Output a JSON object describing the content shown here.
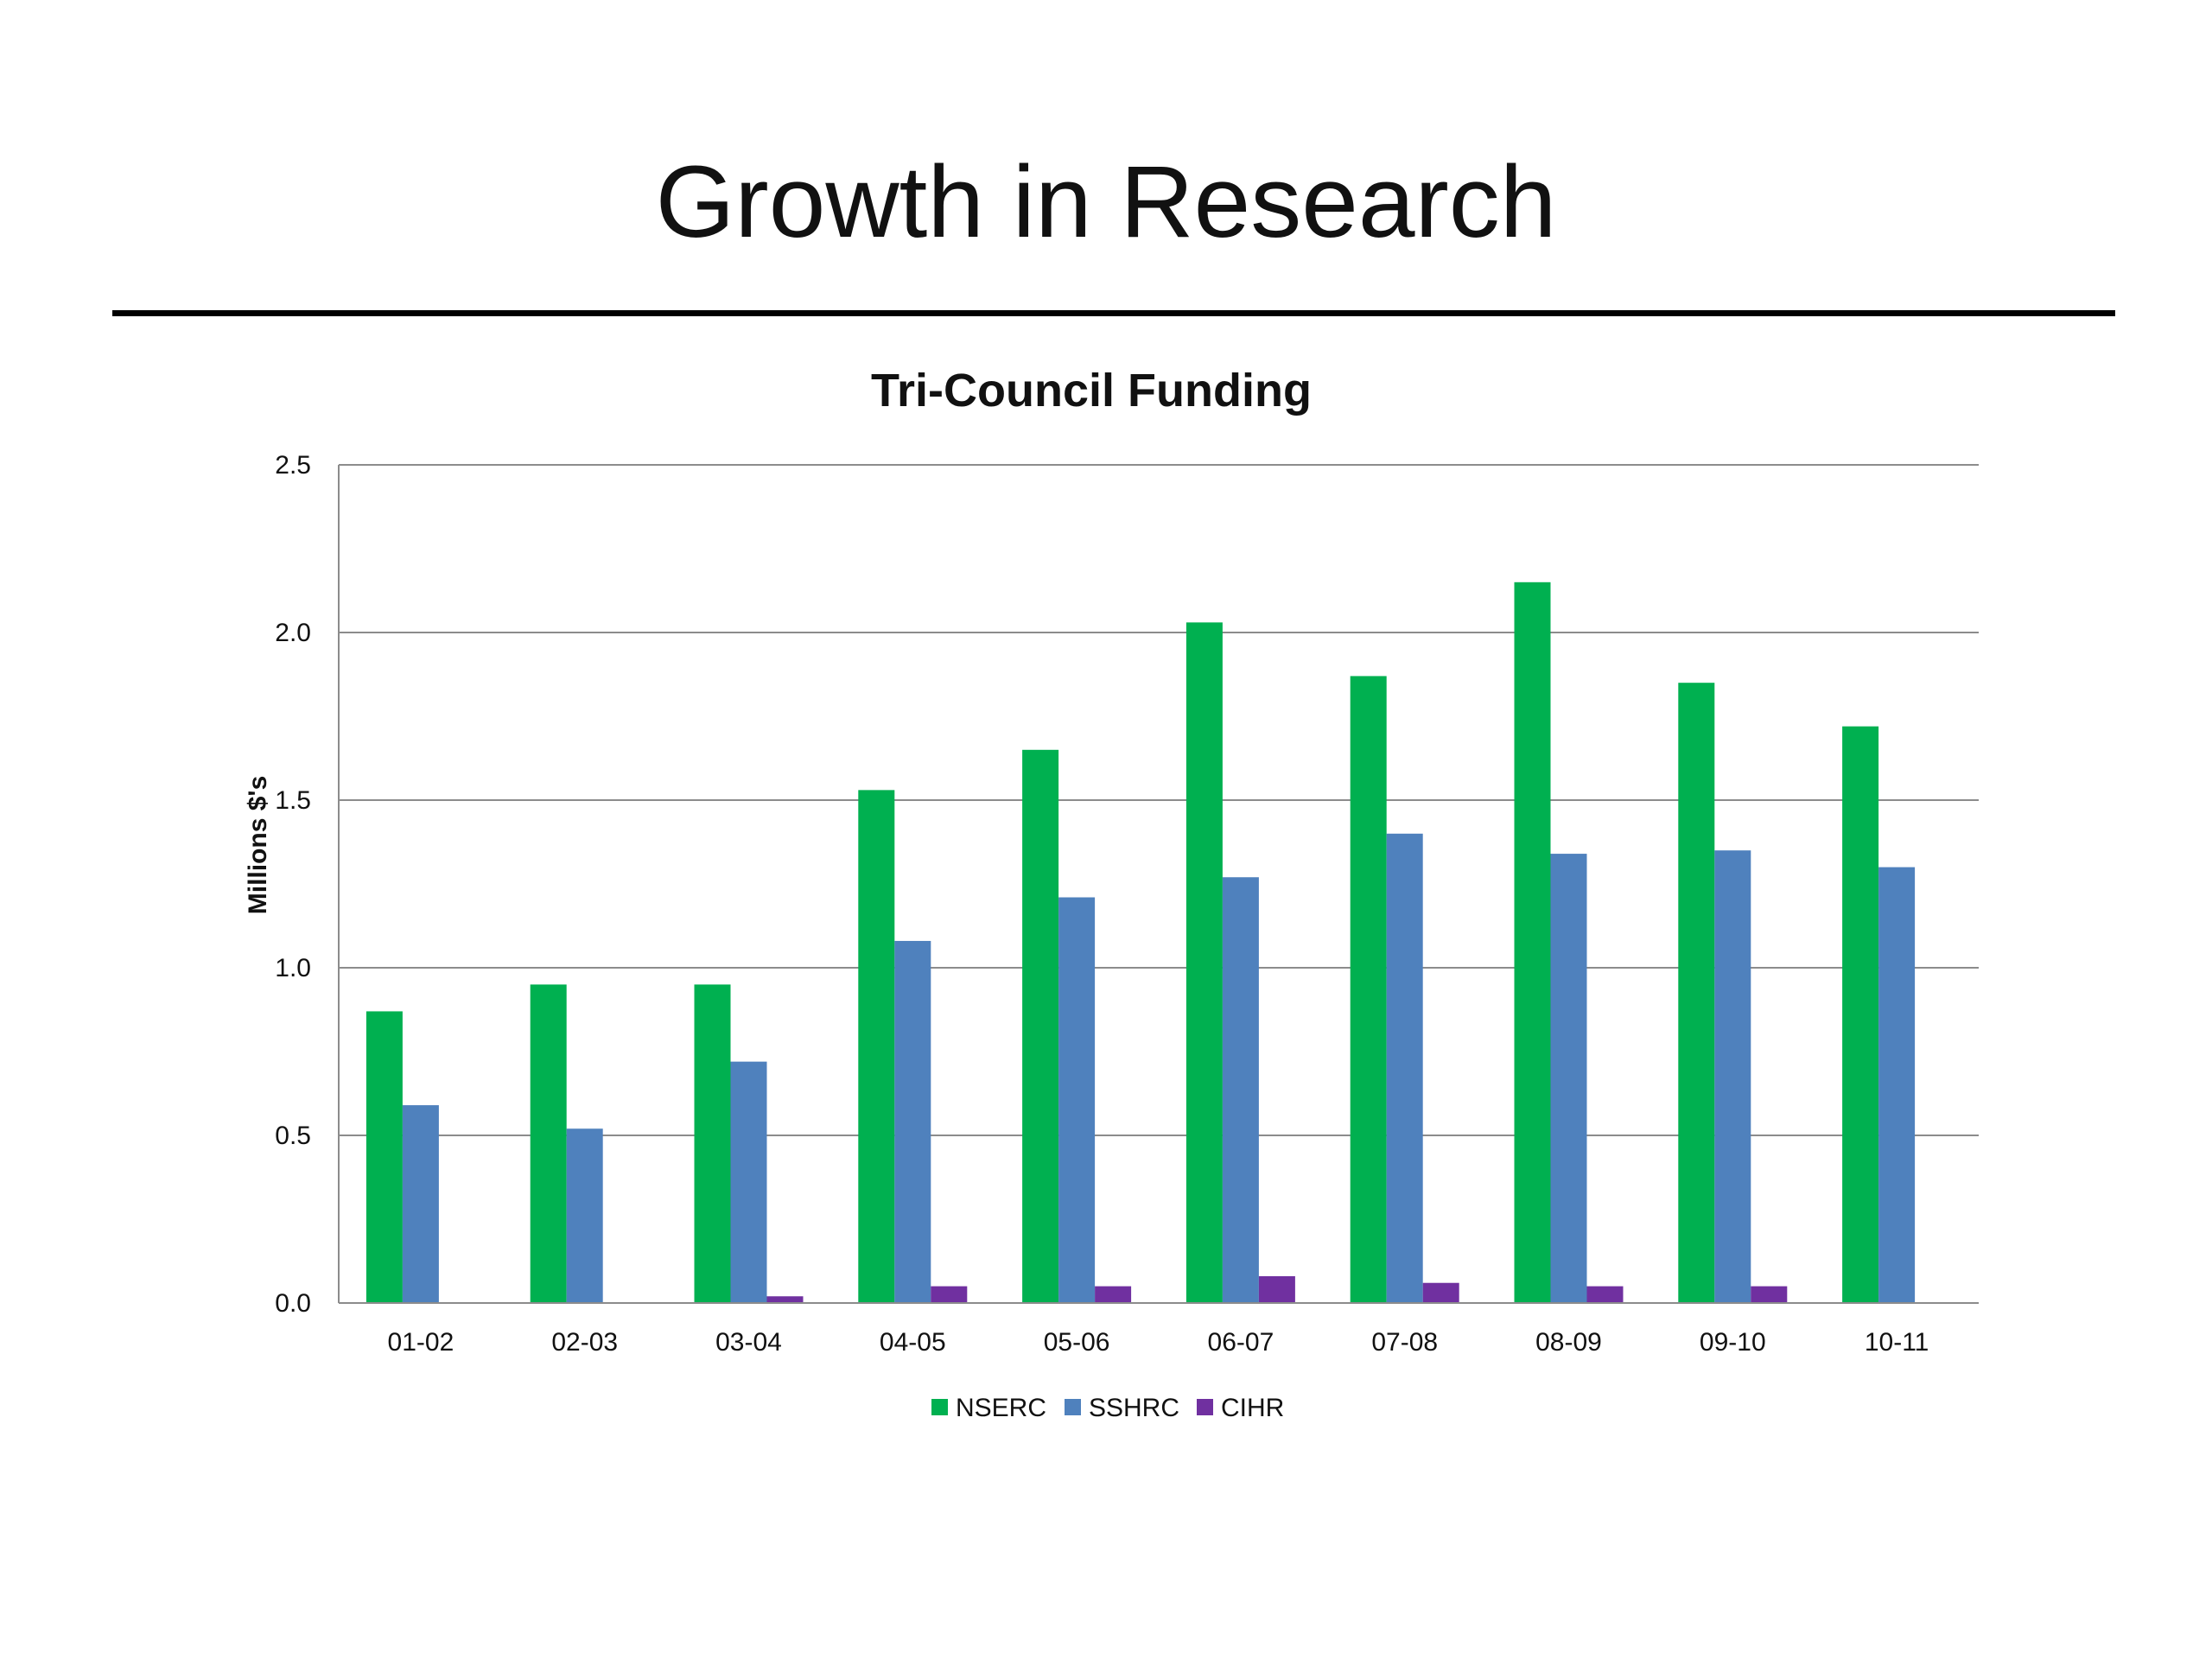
{
  "slide": {
    "title": "Growth in Research"
  },
  "chart_data": {
    "type": "bar",
    "title": "Tri-Council Funding",
    "xlabel": "",
    "ylabel": "Millions $'s",
    "ylim": [
      0,
      2.5
    ],
    "yticks": [
      "0.0",
      "0.5",
      "1.0",
      "1.5",
      "2.0",
      "2.5"
    ],
    "grid": true,
    "legend_position": "bottom",
    "categories": [
      "01-02",
      "02-03",
      "03-04",
      "04-05",
      "05-06",
      "06-07",
      "07-08",
      "08-09",
      "09-10",
      "10-11"
    ],
    "series": [
      {
        "name": "NSERC",
        "color": "#00B050",
        "values": [
          0.87,
          0.95,
          0.95,
          1.53,
          1.65,
          2.03,
          1.87,
          2.15,
          1.85,
          1.72
        ]
      },
      {
        "name": "SSHRC",
        "color": "#4F81BD",
        "values": [
          0.59,
          0.52,
          0.72,
          1.08,
          1.21,
          1.27,
          1.4,
          1.34,
          1.35,
          1.3
        ]
      },
      {
        "name": "CIHR",
        "color": "#7030A0",
        "values": [
          0.0,
          0.0,
          0.02,
          0.05,
          0.05,
          0.08,
          0.06,
          0.05,
          0.05,
          0.0
        ]
      }
    ]
  }
}
